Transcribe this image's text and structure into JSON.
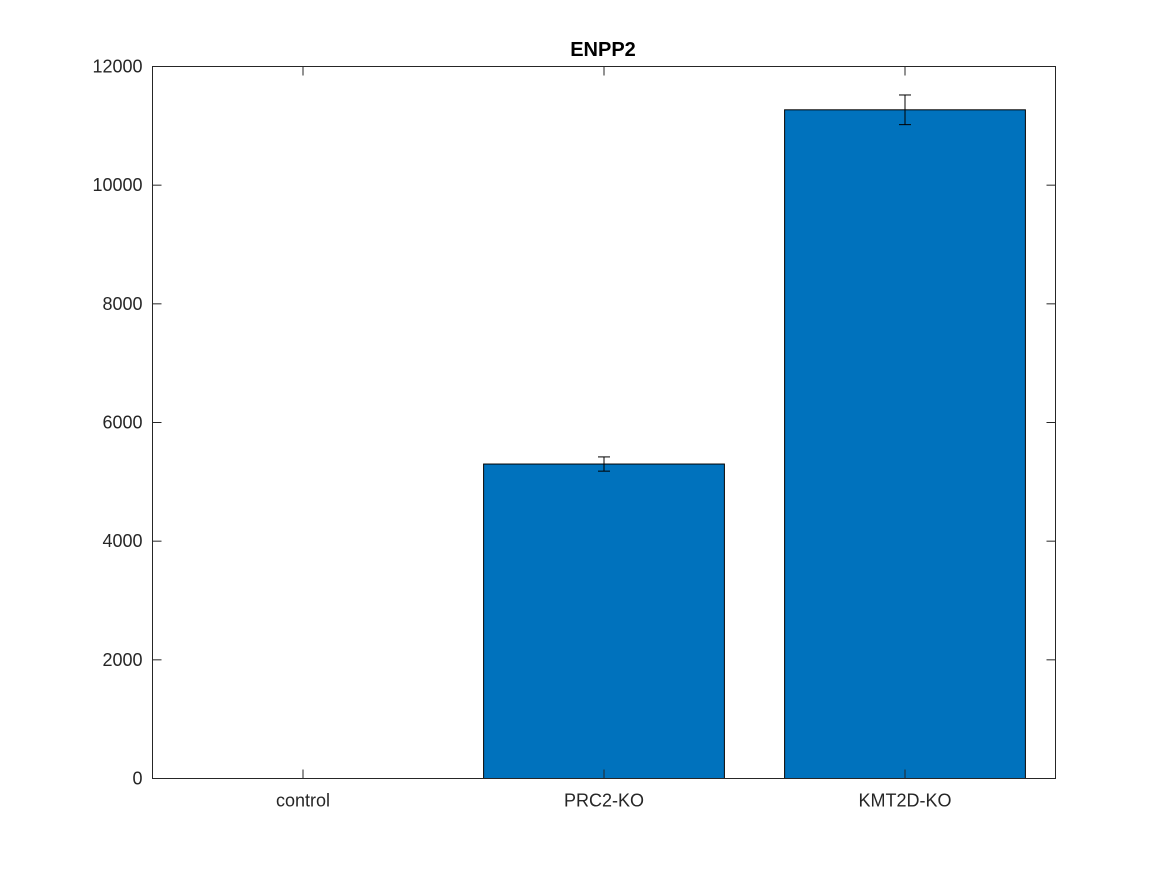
{
  "chart_data": {
    "type": "bar",
    "title": "ENPP2",
    "xlabel": "",
    "ylabel": "",
    "categories": [
      "control",
      "PRC2-KO",
      "KMT2D-KO"
    ],
    "values": [
      0,
      5300,
      11270
    ],
    "errors": [
      0,
      120,
      250
    ],
    "ylim": [
      0,
      12000
    ],
    "yticks": [
      0,
      2000,
      4000,
      6000,
      8000,
      10000,
      12000
    ],
    "ytick_labels": [
      "0",
      "2000",
      "4000",
      "6000",
      "8000",
      "10000",
      "12000"
    ],
    "bar_color": "#0072BD",
    "grid": false
  }
}
